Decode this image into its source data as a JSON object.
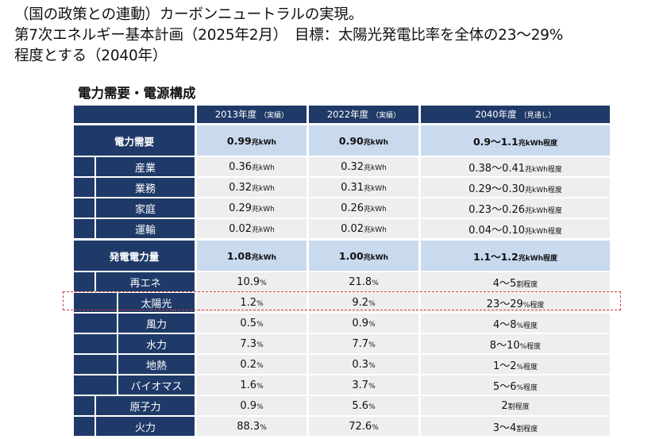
{
  "header": {
    "line1": "（国の政策との連動）カーボンニュートラルの実現。",
    "line2": "第7次エネルギー基本計画（2025年2月）　目標：太陽光発電比率を全体の23～29%",
    "line3": "程度とする（2040年）"
  },
  "section_title": "電力需要・電源構成",
  "table": {
    "columns": [
      {
        "year": "2013年度",
        "note": "（実績）"
      },
      {
        "year": "2022年度",
        "note": "（実績）"
      },
      {
        "year": "2040年度",
        "note": "（見通し）"
      }
    ],
    "demand": {
      "label": "電力需要",
      "values": [
        {
          "num": "0.99",
          "unit": "兆kWh"
        },
        {
          "num": "0.90",
          "unit": "兆kWh"
        },
        {
          "num": "0.9～1.1",
          "unit": "兆kWh程度"
        }
      ],
      "rows": [
        {
          "label": "産業",
          "values": [
            {
              "num": "0.36",
              "unit": "兆kWh"
            },
            {
              "num": "0.32",
              "unit": "兆kWh"
            },
            {
              "num": "0.38～0.41",
              "unit": "兆kWh程度"
            }
          ]
        },
        {
          "label": "業務",
          "values": [
            {
              "num": "0.32",
              "unit": "兆kWh"
            },
            {
              "num": "0.31",
              "unit": "兆kWh"
            },
            {
              "num": "0.29～0.30",
              "unit": "兆kWh程度"
            }
          ]
        },
        {
          "label": "家庭",
          "values": [
            {
              "num": "0.29",
              "unit": "兆kWh"
            },
            {
              "num": "0.26",
              "unit": "兆kWh"
            },
            {
              "num": "0.23～0.26",
              "unit": "兆kWh程度"
            }
          ]
        },
        {
          "label": "運輸",
          "values": [
            {
              "num": "0.02",
              "unit": "兆kWh"
            },
            {
              "num": "0.02",
              "unit": "兆kWh"
            },
            {
              "num": "0.04～0.10",
              "unit": "兆kWh程度"
            }
          ]
        }
      ]
    },
    "generation": {
      "label": "発電電力量",
      "values": [
        {
          "num": "1.08",
          "unit": "兆kWh"
        },
        {
          "num": "1.00",
          "unit": "兆kWh"
        },
        {
          "num": "1.1～1.2",
          "unit": "兆kWh程度"
        }
      ],
      "rows": [
        {
          "label": "再エネ",
          "values": [
            {
              "num": "10.9",
              "unit": "%"
            },
            {
              "num": "21.8",
              "unit": "%"
            },
            {
              "num": "4～5",
              "unit": "割程度"
            }
          ]
        },
        {
          "label": "太陽光",
          "values": [
            {
              "num": "1.2",
              "unit": "%"
            },
            {
              "num": "9.2",
              "unit": "%"
            },
            {
              "num": "23～29",
              "unit": "%程度"
            }
          ]
        },
        {
          "label": "風力",
          "values": [
            {
              "num": "0.5",
              "unit": "%"
            },
            {
              "num": "0.9",
              "unit": "%"
            },
            {
              "num": "4～8",
              "unit": "%程度"
            }
          ]
        },
        {
          "label": "水力",
          "values": [
            {
              "num": "7.3",
              "unit": "%"
            },
            {
              "num": "7.7",
              "unit": "%"
            },
            {
              "num": "8～10",
              "unit": "%程度"
            }
          ]
        },
        {
          "label": "地熱",
          "values": [
            {
              "num": "0.2",
              "unit": "%"
            },
            {
              "num": "0.3",
              "unit": "%"
            },
            {
              "num": "1～2",
              "unit": "%程度"
            }
          ]
        },
        {
          "label": "バイオマス",
          "values": [
            {
              "num": "1.6",
              "unit": "%"
            },
            {
              "num": "3.7",
              "unit": "%"
            },
            {
              "num": "5～6",
              "unit": "%程度"
            }
          ]
        },
        {
          "label": "原子力",
          "values": [
            {
              "num": "0.9",
              "unit": "%"
            },
            {
              "num": "5.6",
              "unit": "%"
            },
            {
              "num": "2",
              "unit": "割程度"
            }
          ]
        },
        {
          "label": "火力",
          "values": [
            {
              "num": "88.3",
              "unit": "%"
            },
            {
              "num": "72.6",
              "unit": "%"
            },
            {
              "num": "3～4",
              "unit": "割程度"
            }
          ]
        }
      ]
    }
  },
  "colors": {
    "header_navy": "#1f3a68",
    "main_row": "#c9d9ee",
    "sub_row": "#eeeeee",
    "highlight": "#d23b3b"
  }
}
